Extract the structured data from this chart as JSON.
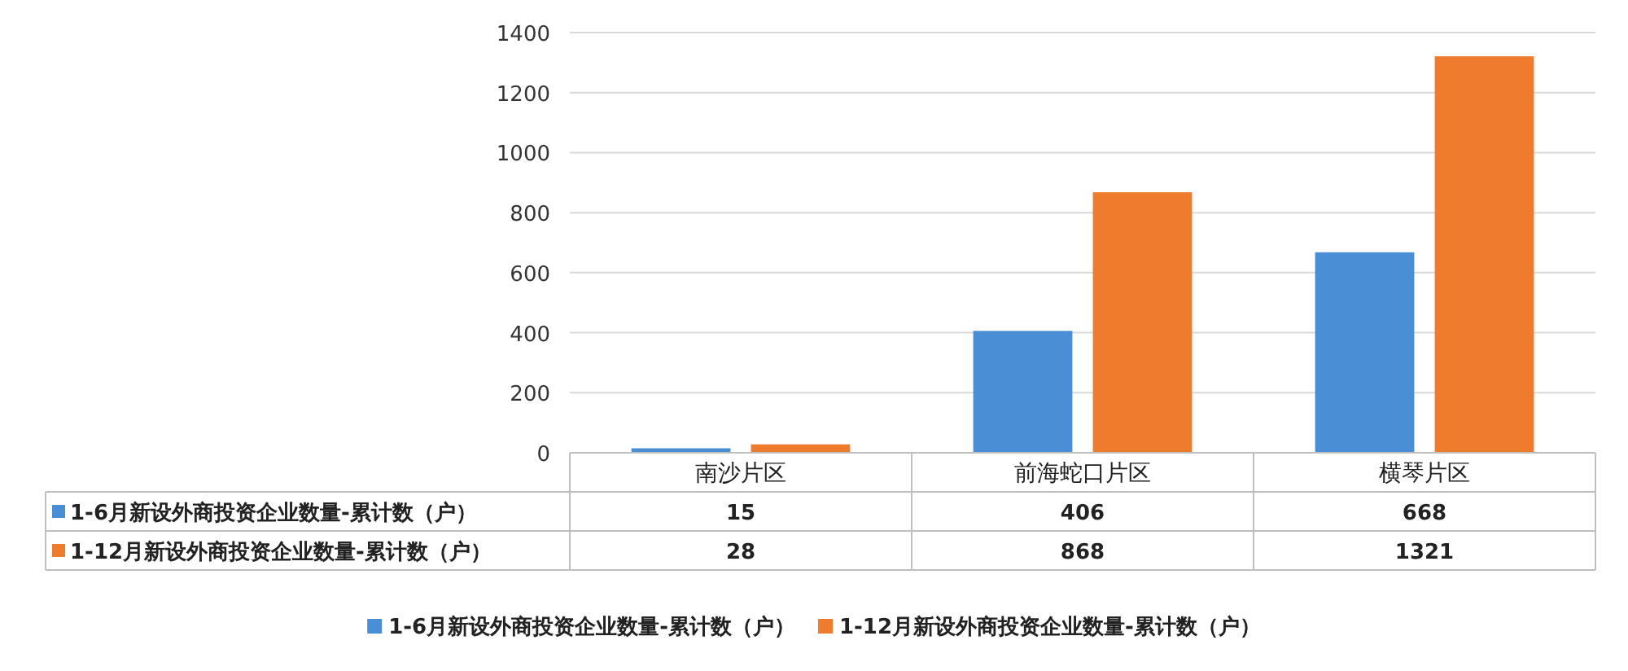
{
  "chart_data": {
    "type": "bar",
    "categories": [
      "南沙片区",
      "前海蛇口片区",
      "横琴片区"
    ],
    "series": [
      {
        "name": "1-6月新设外商投资企业数量-累计数（户）",
        "color": "#4a8fd6",
        "values": [
          15,
          406,
          668
        ]
      },
      {
        "name": "1-12月新设外商投资企业数量-累计数（户）",
        "color": "#ef7b2c",
        "values": [
          28,
          868,
          1321
        ]
      }
    ],
    "ylim": [
      0,
      1400
    ],
    "yticks": [
      0,
      200,
      400,
      600,
      800,
      1000,
      1200,
      1400
    ],
    "grid": "y",
    "legend": "bottom",
    "data_labels": true
  }
}
